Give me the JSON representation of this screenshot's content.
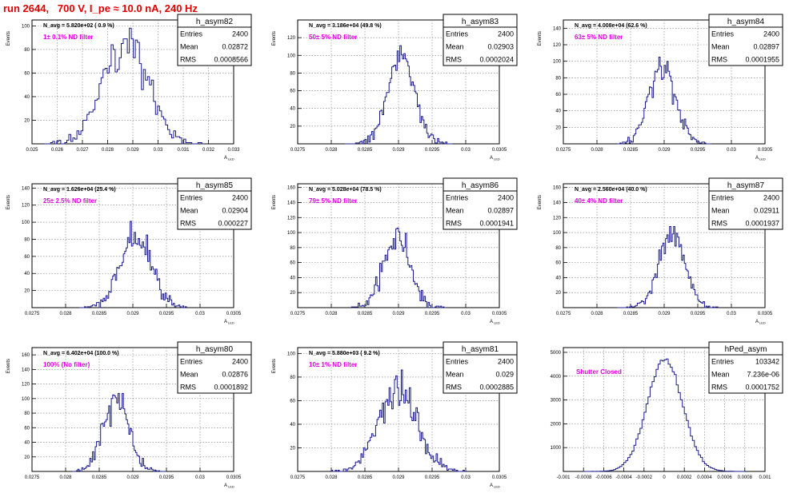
{
  "run_title": "run 2644,   700 V, I_pe ≈ 10.0 nA, 240 Hz",
  "colors": {
    "hist_line": "#1a1a8c",
    "filter_label": "#e000e0",
    "title": "#e00000",
    "grid": "#7a7a7a"
  },
  "stats_labels": {
    "entries": "Entries",
    "mean": "Mean",
    "rms": "RMS"
  },
  "chart_data": [
    {
      "type": "step-histogram",
      "name": "h_asym82",
      "navg": "N_avg = 5.820e+02 ( 0.9 %)",
      "filter": "1± 0.1% ND filter",
      "stats": {
        "entries": "2400",
        "mean": "0.02872",
        "rms": "0.0008566"
      },
      "xlabel": "A_LED",
      "ylabel": "Events",
      "xlim": [
        0.025,
        0.033
      ],
      "xticks": [
        "0.025",
        "0.026",
        "0.027",
        "0.028",
        "0.029",
        "0.03",
        "0.031",
        "0.032",
        "0.033"
      ],
      "ylim": [
        0,
        105
      ],
      "yticks": [
        "20",
        "40",
        "60",
        "80",
        "100"
      ],
      "bins": {
        "center": 0.02872,
        "sigma": 0.0008566,
        "n": 2400,
        "width": 8e-05,
        "range": [
          0.0255,
          0.0318
        ],
        "seed": 82
      }
    },
    {
      "type": "step-histogram",
      "name": "h_asym83",
      "navg": "N_avg = 3.186e+04 (49.8 %)",
      "filter": "50± 5% ND filter",
      "stats": {
        "entries": "2400",
        "mean": "0.02903",
        "rms": "0.0002024"
      },
      "xlabel": "A_LED",
      "ylabel": "Events",
      "xlim": [
        0.0275,
        0.0305
      ],
      "xticks": [
        "0.0275",
        "0.028",
        "0.0285",
        "0.029",
        "0.0295",
        "0.03",
        "0.0305"
      ],
      "ylim": [
        0,
        140
      ],
      "yticks": [
        "20",
        "40",
        "60",
        "80",
        "100",
        "120"
      ],
      "bins": {
        "center": 0.02903,
        "sigma": 0.0002024,
        "n": 2400,
        "width": 2e-05,
        "range": [
          0.0282,
          0.0298
        ],
        "seed": 83
      }
    },
    {
      "type": "step-histogram",
      "name": "h_asym84",
      "navg": "N_avg = 4.008e+04 (62.6 %)",
      "filter": "63± 5% ND filter",
      "stats": {
        "entries": "2400",
        "mean": "0.02897",
        "rms": "0.0001955"
      },
      "xlabel": "A_LED",
      "ylabel": "Events",
      "xlim": [
        0.0275,
        0.0305
      ],
      "xticks": [
        "0.0275",
        "0.028",
        "0.0285",
        "0.029",
        "0.0295",
        "0.03",
        "0.0305"
      ],
      "ylim": [
        0,
        150
      ],
      "yticks": [
        "20",
        "40",
        "60",
        "80",
        "100",
        "120",
        "140"
      ],
      "bins": {
        "center": 0.02897,
        "sigma": 0.0001955,
        "n": 2400,
        "width": 2e-05,
        "range": [
          0.0283,
          0.0297
        ],
        "seed": 84
      }
    },
    {
      "type": "step-histogram",
      "name": "h_asym85",
      "navg": "N_avg = 1.626e+04 (25.4 %)",
      "filter": "25± 2.5% ND filter",
      "stats": {
        "entries": "2400",
        "mean": "0.02904",
        "rms": "0.000227"
      },
      "xlabel": "A_LED",
      "ylabel": "Events",
      "xlim": [
        0.0275,
        0.0305
      ],
      "xticks": [
        "0.0275",
        "0.028",
        "0.0285",
        "0.029",
        "0.0295",
        "0.03",
        "0.0305"
      ],
      "ylim": [
        0,
        145
      ],
      "yticks": [
        "20",
        "40",
        "60",
        "80",
        "100",
        "120",
        "140"
      ],
      "bins": {
        "center": 0.02904,
        "sigma": 0.000227,
        "n": 2400,
        "width": 2e-05,
        "range": [
          0.0282,
          0.0298
        ],
        "seed": 85
      }
    },
    {
      "type": "step-histogram",
      "name": "h_asym86",
      "navg": "N_avg = 5.028e+04 (78.5 %)",
      "filter": "79± 5% ND filter",
      "stats": {
        "entries": "2400",
        "mean": "0.02897",
        "rms": "0.0001941"
      },
      "xlabel": "A_LED",
      "ylabel": "Events",
      "xlim": [
        0.0275,
        0.0305
      ],
      "xticks": [
        "0.0275",
        "0.028",
        "0.0285",
        "0.029",
        "0.0295",
        "0.03",
        "0.0305"
      ],
      "ylim": [
        0,
        165
      ],
      "yticks": [
        "20",
        "40",
        "60",
        "80",
        "100",
        "120",
        "140",
        "160"
      ],
      "bins": {
        "center": 0.02897,
        "sigma": 0.0001941,
        "n": 2400,
        "width": 2e-05,
        "range": [
          0.0283,
          0.0297
        ],
        "seed": 86
      }
    },
    {
      "type": "step-histogram",
      "name": "h_asym87",
      "navg": "N_avg = 2.560e+04 (40.0 %)",
      "filter": "40± 4% ND filter",
      "stats": {
        "entries": "2400",
        "mean": "0.02911",
        "rms": "0.0001937"
      },
      "xlabel": "A_LED",
      "ylabel": "Events",
      "xlim": [
        0.0275,
        0.0305
      ],
      "xticks": [
        "0.0275",
        "0.028",
        "0.0285",
        "0.029",
        "0.0295",
        "0.03",
        "0.0305"
      ],
      "ylim": [
        0,
        165
      ],
      "yticks": [
        "20",
        "40",
        "60",
        "80",
        "100",
        "120",
        "140",
        "160"
      ],
      "bins": {
        "center": 0.02911,
        "sigma": 0.0001937,
        "n": 2400,
        "width": 2e-05,
        "range": [
          0.0283,
          0.0298
        ],
        "seed": 87
      }
    },
    {
      "type": "step-histogram",
      "name": "h_asym80",
      "navg": "N_avg = 6.402e+04 (100.0 %)",
      "filter": "100% (No filter)",
      "stats": {
        "entries": "2400",
        "mean": "0.02876",
        "rms": "0.0001892"
      },
      "xlabel": "A_LED",
      "ylabel": "Events",
      "xlim": [
        0.0275,
        0.0305
      ],
      "xticks": [
        "0.0275",
        "0.028",
        "0.0285",
        "0.029",
        "0.0295",
        "0.03",
        "0.0305"
      ],
      "ylim": [
        0,
        170
      ],
      "yticks": [
        "20",
        "40",
        "60",
        "80",
        "100",
        "120",
        "140",
        "160"
      ],
      "bins": {
        "center": 0.02876,
        "sigma": 0.0001892,
        "n": 2400,
        "width": 2e-05,
        "range": [
          0.0281,
          0.0295
        ],
        "seed": 80
      }
    },
    {
      "type": "step-histogram",
      "name": "h_asym81",
      "navg": "N_avg = 5.880e+03 ( 9.2 %)",
      "filter": "10± 1% ND filter",
      "stats": {
        "entries": "2400",
        "mean": "0.029",
        "rms": "0.0002885"
      },
      "xlabel": "A_LED",
      "ylabel": "Events",
      "xlim": [
        0.0275,
        0.0305
      ],
      "xticks": [
        "0.0275",
        "0.028",
        "0.0285",
        "0.029",
        "0.0295",
        "0.03",
        "0.0305"
      ],
      "ylim": [
        0,
        105
      ],
      "yticks": [
        "20",
        "40",
        "60",
        "80",
        "100"
      ],
      "bins": {
        "center": 0.029,
        "sigma": 0.0002885,
        "n": 2400,
        "width": 2e-05,
        "range": [
          0.028,
          0.03
        ],
        "seed": 81
      }
    },
    {
      "type": "step-histogram",
      "name": "hPed_asym",
      "navg": "",
      "filter": "Shutter Closed",
      "stats": {
        "entries": "103342",
        "mean": "7.236e-06",
        "rms": "0.0001752"
      },
      "xlabel": "",
      "ylabel": "",
      "xlim": [
        -0.001,
        0.001
      ],
      "xticks": [
        "-0.001",
        "-0.0008",
        "-0.0006",
        "-0.0004",
        "-0.0002",
        "0",
        "0.0002",
        "0.0004",
        "0.0006",
        "0.0008",
        "0.001"
      ],
      "ylim": [
        0,
        5200
      ],
      "yticks": [
        "1000",
        "2000",
        "3000",
        "4000",
        "5000"
      ],
      "bins": {
        "center": 7.236e-06,
        "sigma": 0.0001752,
        "n": 103342,
        "width": 2e-05,
        "range": [
          -0.0008,
          0.0008
        ],
        "seed": 99
      }
    }
  ]
}
